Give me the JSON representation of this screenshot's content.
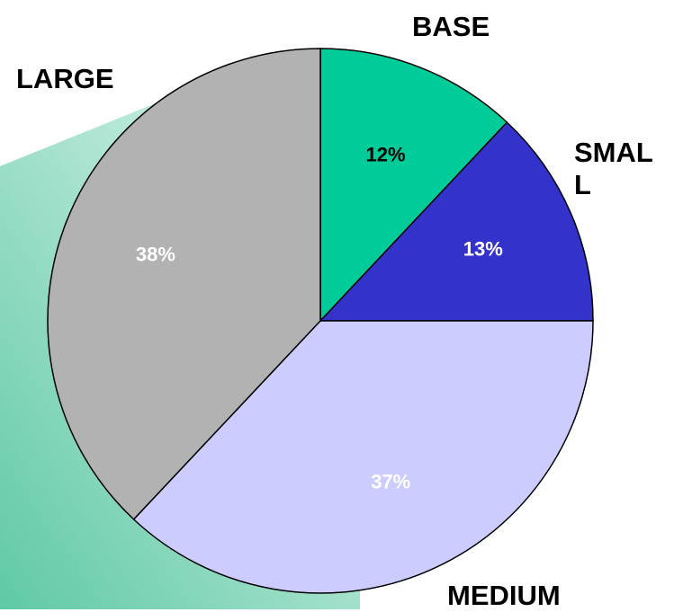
{
  "chart_data": {
    "type": "pie",
    "categories": [
      "BASE",
      "SMALL",
      "MEDIUM",
      "LARGE"
    ],
    "values": [
      12,
      13,
      37,
      38
    ],
    "value_labels": [
      "12%",
      "13%",
      "37%",
      "38%"
    ],
    "colors": [
      "#00cc99",
      "#3333cc",
      "#ccccff",
      "#b2b2b2"
    ]
  }
}
